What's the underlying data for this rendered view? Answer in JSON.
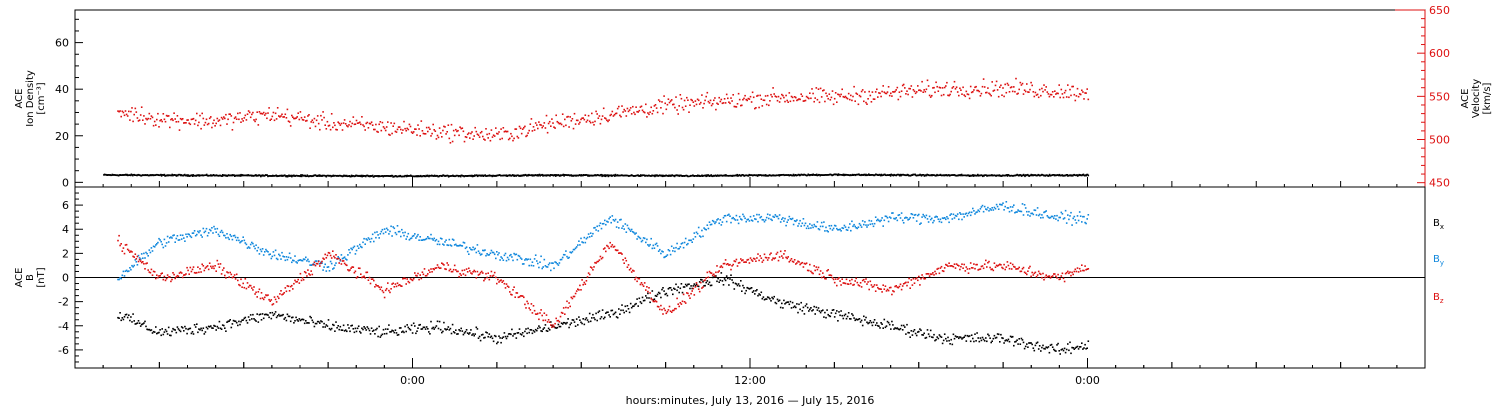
{
  "chart_data": {
    "type": "scatter",
    "xlabel": "hours:minutes, July 13, 2016 — July 15, 2016",
    "x_tick_labels": [
      "0:00",
      "12:00",
      "0:00"
    ],
    "panels": [
      {
        "id": "plasma",
        "ylabel_lines": [
          "ACE",
          "Ion Density",
          "[cm⁻³]"
        ],
        "ylim": [
          -2,
          74
        ],
        "yticks": [
          0,
          20,
          40,
          60
        ],
        "ytick_labels": [
          "0",
          "20",
          "40",
          "60"
        ],
        "right_axis": {
          "ylabel_lines": [
            "ACE",
            "Velocity",
            "[km/s]"
          ],
          "ylim": [
            445,
            650
          ],
          "yticks": [
            450,
            500,
            550,
            600,
            650
          ],
          "ytick_labels": [
            "450",
            "500",
            "550",
            "600",
            "650"
          ],
          "color": "#dd1111"
        },
        "series": [
          {
            "color": "#000000",
            "axis": "left",
            "points": [
              [
                -11,
                3.5
              ],
              [
                -5,
                3.2
              ],
              [
                0,
                3.0
              ],
              [
                5,
                3.4
              ],
              [
                10,
                3.1
              ],
              [
                15,
                3.6
              ],
              [
                20,
                3.3
              ],
              [
                24,
                3.4
              ]
            ]
          },
          {
            "color": "#dd1111",
            "axis": "right",
            "points": [
              [
                -10.5,
                533
              ],
              [
                -9,
                525
              ],
              [
                -7,
                522
              ],
              [
                -5,
                530
              ],
              [
                -3,
                520
              ],
              [
                -1,
                515
              ],
              [
                1,
                510
              ],
              [
                3,
                505
              ],
              [
                5,
                520
              ],
              [
                7,
                530
              ],
              [
                9,
                540
              ],
              [
                11,
                545
              ],
              [
                13,
                550
              ],
              [
                15,
                550
              ],
              [
                17,
                555
              ],
              [
                19,
                560
              ],
              [
                21,
                560
              ],
              [
                23,
                557
              ],
              [
                24,
                555
              ]
            ]
          }
        ]
      },
      {
        "id": "mag",
        "ylabel_lines": [
          "ACE",
          "B",
          "[nT]"
        ],
        "ylim": [
          -7.5,
          7.5
        ],
        "yticks": [
          -6,
          -4,
          -2,
          0,
          2,
          4,
          6
        ],
        "ytick_labels": [
          "-6",
          "-4",
          "-2",
          "0",
          "2",
          "4",
          "6"
        ],
        "zero_line": true,
        "series": [
          {
            "name": "Bx",
            "label_main": "B",
            "label_sub": "x",
            "color": "#000000",
            "points": [
              [
                -10.5,
                -3
              ],
              [
                -9,
                -4.5
              ],
              [
                -7,
                -4
              ],
              [
                -5,
                -3
              ],
              [
                -3,
                -4
              ],
              [
                -1,
                -4.5
              ],
              [
                1,
                -4
              ],
              [
                3,
                -5
              ],
              [
                5,
                -4
              ],
              [
                7,
                -3
              ],
              [
                9,
                -1
              ],
              [
                11,
                0
              ],
              [
                13,
                -2
              ],
              [
                15,
                -3
              ],
              [
                17,
                -4
              ],
              [
                19,
                -5
              ],
              [
                21,
                -5
              ],
              [
                23,
                -6
              ],
              [
                24,
                -5.5
              ]
            ]
          },
          {
            "name": "By",
            "label_main": "B",
            "label_sub": "y",
            "color": "#1188dd",
            "points": [
              [
                -10.5,
                0
              ],
              [
                -9,
                3
              ],
              [
                -7,
                4
              ],
              [
                -5,
                2
              ],
              [
                -3,
                1
              ],
              [
                -1,
                4
              ],
              [
                1,
                3
              ],
              [
                3,
                2
              ],
              [
                5,
                1
              ],
              [
                7,
                5
              ],
              [
                9,
                2
              ],
              [
                11,
                5
              ],
              [
                13,
                5
              ],
              [
                15,
                4
              ],
              [
                17,
                5
              ],
              [
                19,
                5
              ],
              [
                21,
                6
              ],
              [
                23,
                5
              ],
              [
                24,
                5
              ]
            ]
          },
          {
            "name": "Bz",
            "label_main": "B",
            "label_sub": "z",
            "color": "#dd1111",
            "points": [
              [
                -10.5,
                3
              ],
              [
                -9,
                0
              ],
              [
                -7,
                1
              ],
              [
                -5,
                -2
              ],
              [
                -3,
                2
              ],
              [
                -1,
                -1
              ],
              [
                1,
                1
              ],
              [
                3,
                0
              ],
              [
                5,
                -4
              ],
              [
                7,
                3
              ],
              [
                9,
                -3
              ],
              [
                11,
                1
              ],
              [
                13,
                2
              ],
              [
                15,
                0
              ],
              [
                17,
                -1
              ],
              [
                19,
                1
              ],
              [
                21,
                1
              ],
              [
                23,
                0
              ],
              [
                24,
                1
              ]
            ]
          }
        ]
      }
    ]
  }
}
